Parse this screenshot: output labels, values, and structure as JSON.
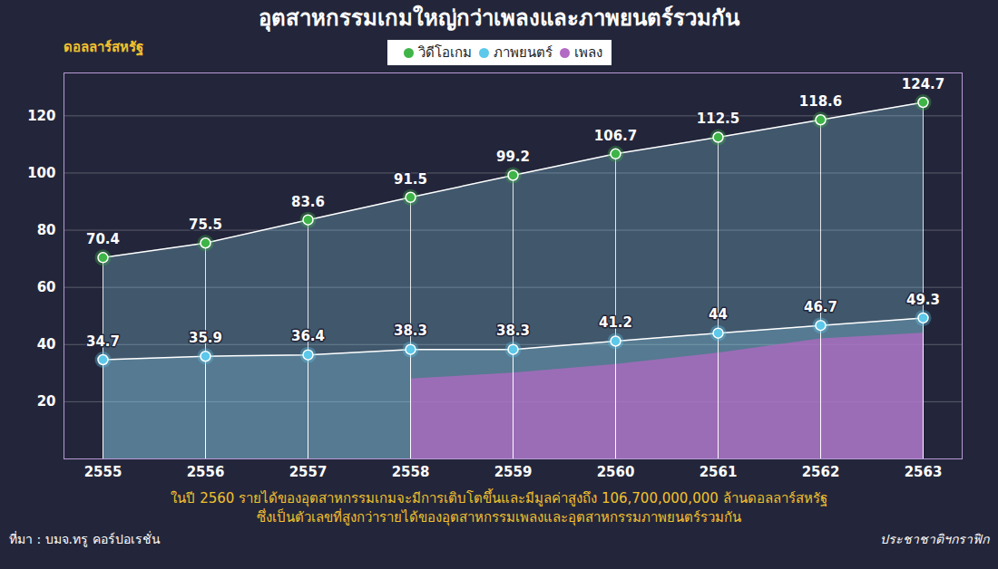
{
  "chart_data": {
    "type": "line",
    "title": "อุตสาหกรรมเกมใหญ่กว่าเพลงและภาพยนตร์รวมกัน",
    "y_label": "ดอลลาร์สหรัฐ",
    "categories": [
      "2555",
      "2556",
      "2557",
      "2558",
      "2559",
      "2560",
      "2561",
      "2562",
      "2563"
    ],
    "series": [
      {
        "name": "วิดีโอเกม",
        "color": "#3fb548",
        "type": "line",
        "values": [
          70.4,
          75.5,
          83.6,
          91.5,
          99.2,
          106.7,
          112.5,
          118.6,
          124.7
        ]
      },
      {
        "name": "ภาพยนตร์",
        "color": "#5cc8ea",
        "type": "line",
        "values": [
          34.7,
          35.9,
          36.4,
          38.3,
          38.3,
          41.2,
          44,
          46.7,
          49.3
        ]
      },
      {
        "name": "เพลง",
        "color": "#b36ac4",
        "type": "area",
        "values": [
          null,
          null,
          null,
          28,
          30,
          33,
          37,
          42,
          44
        ]
      }
    ],
    "data_labels": true,
    "ylim": [
      0,
      135
    ],
    "yticks": [
      20,
      40,
      60,
      80,
      100,
      120
    ],
    "grid": true,
    "legend": "top",
    "caption": [
      "ในปี 2560 รายได้ของอุตสาหกรรมเกมจะมีการเติบโตขึ้นและมีมูลค่าสูงถึง 106,700,000,000 ล้านดอลลาร์สหรัฐ",
      "ซึ่งเป็นตัวเลขที่สูงกว่ารายได้ของอุตสาหกรรมเพลงและอุตสาหกรรมภาพยนตร์รวมกัน"
    ],
    "source": "ที่มา : บมจ.ทรู คอร์ปอเรชั่น",
    "credit": "ประชาชาติฯกราฟิก"
  }
}
